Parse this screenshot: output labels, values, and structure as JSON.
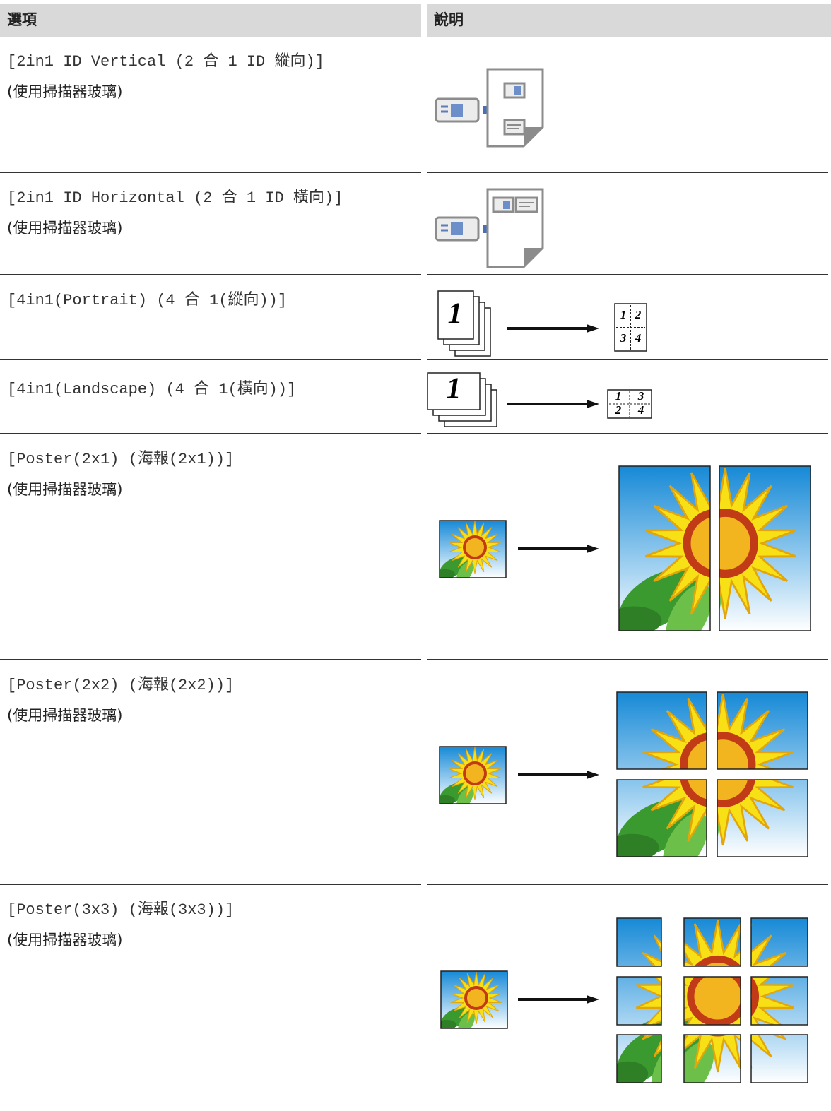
{
  "header": {
    "option": "選項",
    "description": "說明"
  },
  "rows": [
    {
      "option": "[2in1 ID Vertical (2 合 1 ID 縱向)]",
      "note": "(使用掃描器玻璃)"
    },
    {
      "option": "[2in1 ID Horizontal (2 合 1 ID 橫向)]",
      "note": "(使用掃描器玻璃)"
    },
    {
      "option": "[4in1(Portrait) (4 合 1(縱向))]",
      "figure": {
        "stack_label": "1",
        "cells": [
          "1",
          "2",
          "3",
          "4"
        ]
      }
    },
    {
      "option": "[4in1(Landscape) (4 合 1(橫向))]",
      "figure": {
        "stack_label": "1",
        "cells": [
          "1",
          "3",
          "2",
          "4"
        ]
      }
    },
    {
      "option": "[Poster(2x1) (海報(2x1))]",
      "note": "(使用掃描器玻璃)"
    },
    {
      "option": "[Poster(2x2) (海報(2x2))]",
      "note": "(使用掃描器玻璃)"
    },
    {
      "option": "[Poster(3x3) (海報(3x3))]",
      "note": "(使用掃描器玻璃)"
    }
  ]
}
